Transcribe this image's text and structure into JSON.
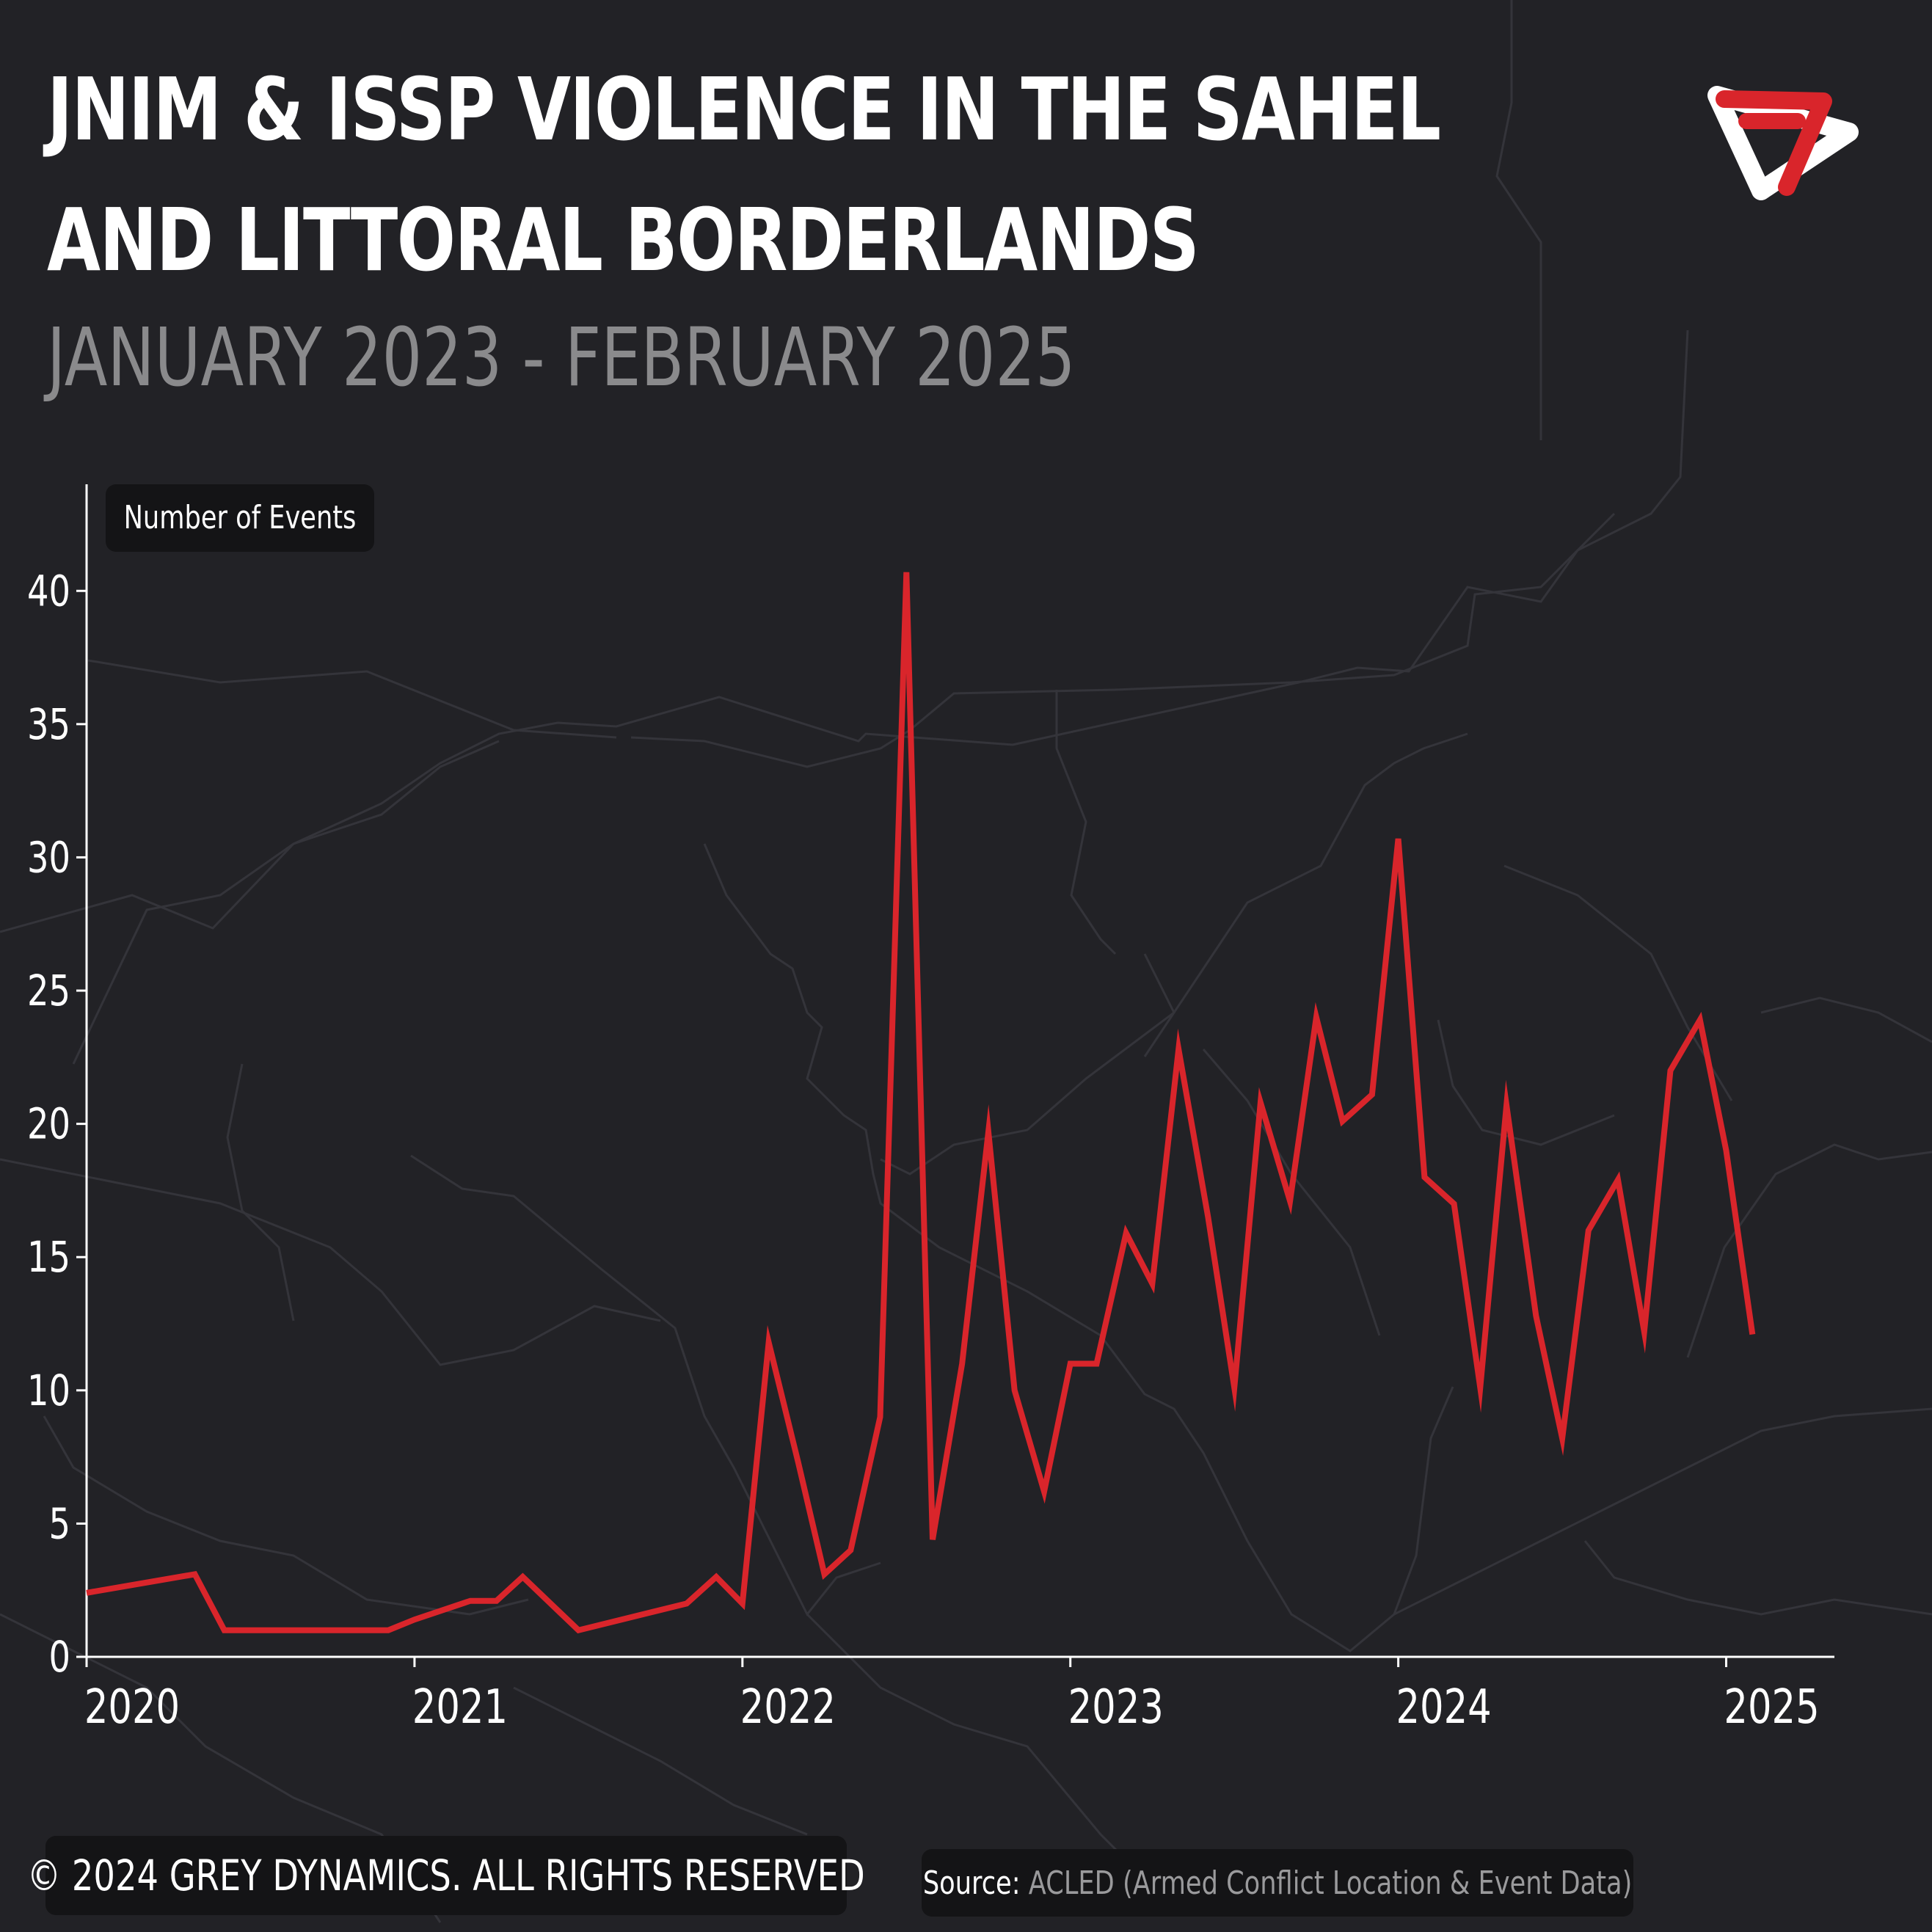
{
  "header": {
    "title_line1": "JNIM & ISSP VIOLENCE IN THE SAHEL",
    "title_line2": "AND LITTORAL BORDERLANDS",
    "subtitle": "JANUARY 2023 - FEBRUARY 2025"
  },
  "colors": {
    "background": "#222226",
    "line": "#d9252b",
    "text": "#ffffff",
    "muted": "#8a8a8c",
    "border_lines": "#34343a"
  },
  "logo": {
    "icon": "grey-dynamics-logo-icon"
  },
  "footer": {
    "copyright": "© 2024 GREY DYNAMICS. ALL RIGHTS RESERVED",
    "source_label": "Source:",
    "source_text": "ACLED (Armed Conflict Location & Event Data)"
  },
  "chart_data": {
    "type": "line",
    "ylabel": "Number of Events",
    "xlabel": "",
    "ylim": [
      0,
      44
    ],
    "xlim": [
      2020.0,
      2025.33
    ],
    "yticks": [
      0,
      5,
      10,
      15,
      20,
      25,
      30,
      35,
      40
    ],
    "xticks": [
      2020,
      2021,
      2022,
      2023,
      2024,
      2025
    ],
    "grid": false,
    "legend": "none",
    "series": [
      {
        "x": [
          2020.0,
          2020.33,
          2020.42,
          2020.58,
          2020.67,
          2020.92,
          2021.0,
          2021.17,
          2021.25,
          2021.33,
          2021.5,
          2021.83,
          2021.92,
          2022.0,
          2022.08,
          2022.17,
          2022.25,
          2022.33,
          2022.42,
          2022.5,
          2022.58,
          2022.67,
          2022.75,
          2022.83,
          2022.92,
          2023.0,
          2023.08,
          2023.17,
          2023.25,
          2023.33,
          2023.42,
          2023.5,
          2023.58,
          2023.67,
          2023.75,
          2023.83,
          2023.92,
          2024.0,
          2024.08,
          2024.17,
          2024.25,
          2024.33,
          2024.42,
          2024.5,
          2024.58,
          2024.67,
          2024.75,
          2024.83,
          2024.92,
          2025.0,
          2025.08
        ],
        "values": [
          2.4,
          3.1,
          1.0,
          1.0,
          1.0,
          1.0,
          1.4,
          2.1,
          2.1,
          3.0,
          1.0,
          2.0,
          3.0,
          2.0,
          11.8,
          7.3,
          3.1,
          4.0,
          9.0,
          40.7,
          4.4,
          11.0,
          19.7,
          10.0,
          6.2,
          11.0,
          11.0,
          15.9,
          14.0,
          22.8,
          16.5,
          10.1,
          20.8,
          17.1,
          24.0,
          20.1,
          21.1,
          30.7,
          18.0,
          17.0,
          10.1,
          20.7,
          12.8,
          8.2,
          16.0,
          17.9,
          12.2,
          22.0,
          23.9,
          19.0,
          12.1
        ]
      }
    ]
  }
}
